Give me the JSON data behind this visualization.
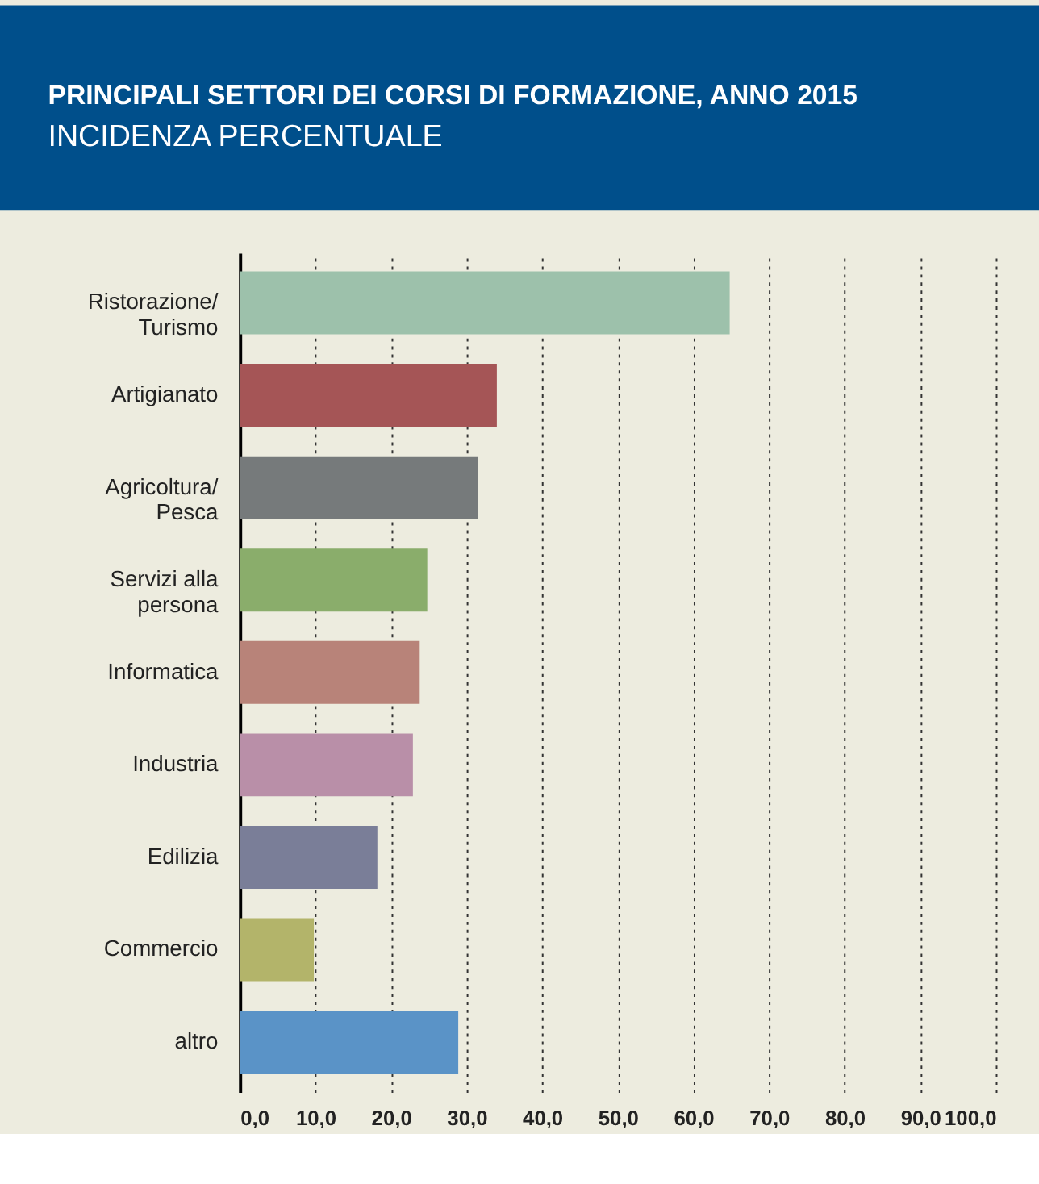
{
  "chart_data": {
    "type": "bar",
    "orientation": "horizontal",
    "title": "PRINCIPALI SETTORI DEI CORSI DI FORMAZIONE, ANNO 2015",
    "subtitle": "INCIDENZA PERCENTUALE",
    "categories": [
      "Ristorazione/\nTurismo",
      "Artigianato",
      "Agricoltura/\nPesca",
      "Servizi alla\npersona",
      "Informatica",
      "Industria",
      "Edilizia",
      "Commercio",
      "altro"
    ],
    "values": [
      64.8,
      34.0,
      31.5,
      24.8,
      23.8,
      22.9,
      18.2,
      9.8,
      28.9
    ],
    "colors": [
      "#9dc1ab",
      "#a55556",
      "#767a7b",
      "#8aad6b",
      "#b88379",
      "#b98fa8",
      "#7a7e98",
      "#b3b46a",
      "#5a93c7"
    ],
    "xlim": [
      0,
      100
    ],
    "xticks": [
      {
        "value": 0,
        "label": "0,0"
      },
      {
        "value": 10,
        "label": "10,0"
      },
      {
        "value": 20,
        "label": "20,0"
      },
      {
        "value": 30,
        "label": "30,0"
      },
      {
        "value": 40,
        "label": "40,0"
      },
      {
        "value": 50,
        "label": "50,0"
      },
      {
        "value": 60,
        "label": "60,0"
      },
      {
        "value": 70,
        "label": "70,0"
      },
      {
        "value": 80,
        "label": "80,0"
      },
      {
        "value": 90,
        "label": "90,0"
      },
      {
        "value": 100,
        "label": "100,0"
      }
    ],
    "grid": "x"
  }
}
